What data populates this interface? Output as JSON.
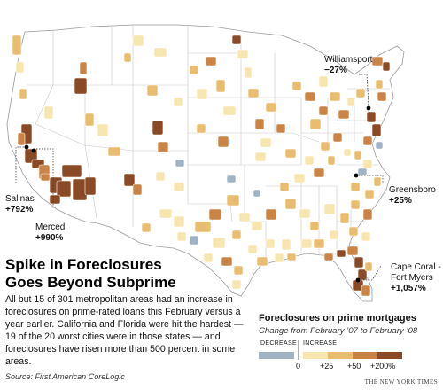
{
  "headline": {
    "line1": "Spike in Foreclosures",
    "line2": "Goes Beyond Subprime"
  },
  "body": "All but 15 of 301 metropolitan areas had an increase in foreclosures on prime-rated loans this February versus a year earlier. California and Florida were hit the hardest — 19 of the 20 worst cities were in those states — and foreclosures have risen more than 500 percent in some areas.",
  "source": "Source: First American CoreLogic",
  "credit": "THE NEW YORK TIMES",
  "callouts": {
    "williamsport": {
      "name": "Williamsport",
      "value": "−27%"
    },
    "salinas": {
      "name": "Salinas",
      "value": "+792%"
    },
    "merced": {
      "name": "Merced",
      "value": "+990%"
    },
    "greensboro": {
      "name": "Greensboro",
      "value": "+25%"
    },
    "capecoral": {
      "name1": "Cape Coral -",
      "name2": "Fort Myers",
      "value": "+1,057%"
    }
  },
  "legend": {
    "title": "Foreclosures on prime mortgages",
    "subtitle": "Change from February ’07 to February ’08",
    "decrease": "DECREASE",
    "increase": "INCREASE",
    "ticks": [
      "0",
      "+25",
      "+50",
      "+200%"
    ]
  },
  "colors": {
    "outline": "#9a9a9a",
    "decrease": "#9fb3c4",
    "low": "#f7e6b0",
    "mid": "#e9bd6f",
    "high": "#c98446",
    "top": "#8a4a26"
  }
}
